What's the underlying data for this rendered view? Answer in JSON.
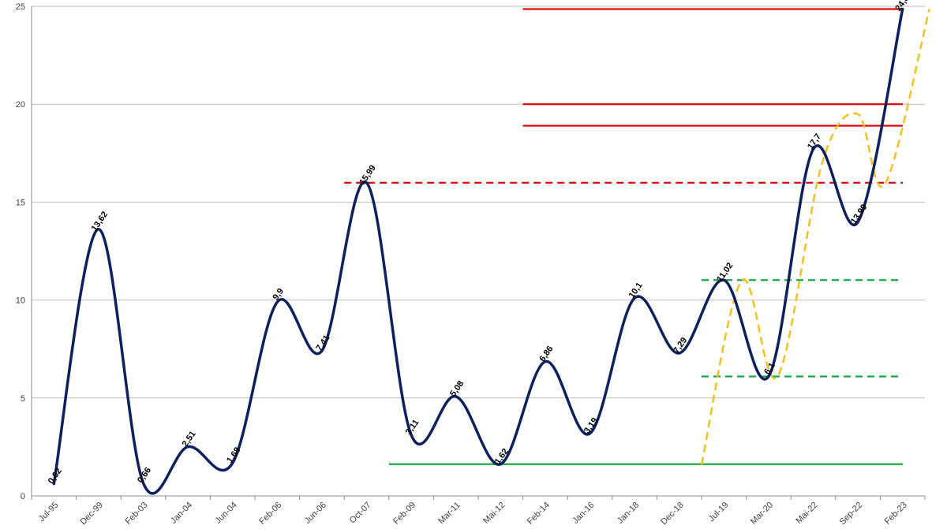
{
  "chart_data": {
    "type": "line",
    "title": "",
    "xlabel": "",
    "ylabel": "",
    "ylim": [
      0,
      25
    ],
    "yticks": [
      0,
      5,
      10,
      15,
      20,
      25
    ],
    "grid": "horizontal",
    "legend": "none",
    "categories": [
      "Jul-95",
      "Dec-99",
      "Feb-03",
      "Jan-04",
      "Jun-04",
      "Feb-06",
      "Jun-06",
      "Oct-07",
      "Feb-09",
      "Mar-11",
      "Mai-12",
      "Feb-14",
      "Jan-16",
      "Jan-18",
      "Dec-18",
      "Jul-19",
      "Mar-20",
      "Mai-22",
      "Sep-22",
      "Feb-23"
    ],
    "series": [
      {
        "color": "#0d2160",
        "values": [
          0.62,
          13.62,
          0.66,
          2.51,
          1.68,
          9.9,
          7.41,
          15.99,
          3.11,
          5.08,
          1.62,
          6.86,
          3.19,
          10.1,
          7.29,
          11.02,
          6.1,
          17.7,
          13.99,
          24.86
        ],
        "labels": [
          "0,62",
          "13,62",
          "0,66",
          "2,51",
          "1,68",
          "9,9",
          "7,41",
          "15,99",
          "3,11",
          "5,08",
          "1,62",
          "6,86",
          "3,19",
          "10,1",
          "7,29",
          "11,02",
          "6,1",
          "17,7",
          "13,99",
          "24,86"
        ]
      }
    ],
    "reference_lines": [
      {
        "y": 24.86,
        "from": 11,
        "to": 20,
        "color": "#e00000",
        "dashed": false
      },
      {
        "y": 20.0,
        "from": 11,
        "to": 20,
        "color": "#e00000",
        "dashed": false
      },
      {
        "y": 18.9,
        "from": 11,
        "to": 20,
        "color": "#e00000",
        "dashed": false
      },
      {
        "y": 15.99,
        "from": 7,
        "to": 20,
        "color": "#e00000",
        "dashed": true
      },
      {
        "y": 11.02,
        "from": 15,
        "to": 20,
        "color": "#18a848",
        "dashed": true
      },
      {
        "y": 6.1,
        "from": 15,
        "to": 20,
        "color": "#18a848",
        "dashed": true
      },
      {
        "y": 1.62,
        "from": 8,
        "to": 20,
        "color": "#18a848",
        "dashed": false
      }
    ],
    "projection": {
      "color": "#f5c020",
      "dashed": true,
      "points": [
        [
          14.5,
          1.6
        ],
        [
          15.4,
          11.0
        ],
        [
          16.2,
          6.1
        ],
        [
          17.2,
          17.0
        ],
        [
          18.0,
          19.5
        ],
        [
          18.6,
          15.9
        ],
        [
          19.6,
          24.86
        ]
      ]
    }
  }
}
